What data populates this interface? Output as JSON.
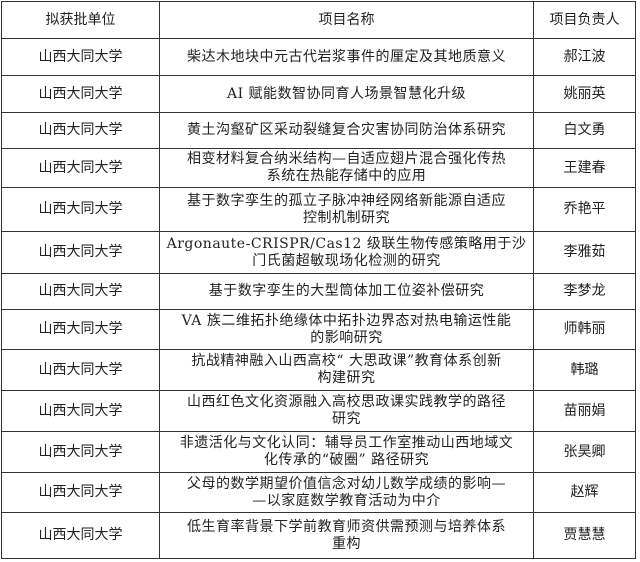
{
  "table": {
    "headers": [
      "拟获批单位",
      "项目名称",
      "项目负责人"
    ],
    "rows": [
      {
        "unit": "山西大同大学",
        "name_lines": [
          "柴达木地块中元古代岩浆事件的厘定及其地质意义"
        ],
        "leader": "郝江波"
      },
      {
        "unit": "山西大同大学",
        "name_lines": [
          "AI 赋能数智协同育人场景智慧化升级"
        ],
        "leader": "姚丽英"
      },
      {
        "unit": "山西大同大学",
        "name_lines": [
          "黄土沟壑矿区采动裂缝复合灾害协同防治体系研究"
        ],
        "leader": "白文勇"
      },
      {
        "unit": "山西大同大学",
        "name_lines": [
          "相变材料复合纳米结构—自适应翅片混合强化传热",
          "系统在热能存储中的应用"
        ],
        "leader": "王建春"
      },
      {
        "unit": "山西大同大学",
        "name_lines": [
          "基于数字孪生的孤立子脉冲神经网络新能源自适应",
          "控制机制研究"
        ],
        "leader": "乔艳平"
      },
      {
        "unit": "山西大同大学",
        "name_lines": [
          "Argonaute-CRISPR/Cas12 级联生物传感策略用于沙",
          "门氏菌超敏现场化检测的研究"
        ],
        "leader": "李雅茹"
      },
      {
        "unit": "山西大同大学",
        "name_lines": [
          "基于数字孪生的大型筒体加工位姿补偿研究"
        ],
        "leader": "李梦龙"
      },
      {
        "unit": "山西大同大学",
        "name_lines": [
          "VA 族二维拓扑绝缘体中拓扑边界态对热电输运性能",
          "的影响研究"
        ],
        "leader": "师韩丽"
      },
      {
        "unit": "山西大同大学",
        "name_lines": [
          "抗战精神融入山西高校“ 大思政课”教育体系创新",
          "构建研究"
        ],
        "leader": "韩璐"
      },
      {
        "unit": "山西大同大学",
        "name_lines": [
          "山西红色文化资源融入高校思政课实践教学的路径",
          "研究"
        ],
        "leader": "苗丽娟"
      },
      {
        "unit": "山西大同大学",
        "name_lines": [
          "非遗活化与文化认同：辅导员工作室推动山西地域文",
          "化传承的“破圈” 路径研究"
        ],
        "leader": "张昊卿"
      },
      {
        "unit": "山西大同大学",
        "name_lines": [
          "父母的数学期望价值信念对幼儿数学成绩的影响—",
          "—以家庭数学教育活动为中介"
        ],
        "leader": "赵辉"
      },
      {
        "unit": "山西大同大学",
        "name_lines": [
          "低生育率背景下学前教育师资供需预测与培养体系",
          "重构"
        ],
        "leader": "贾慧慧"
      }
    ]
  }
}
